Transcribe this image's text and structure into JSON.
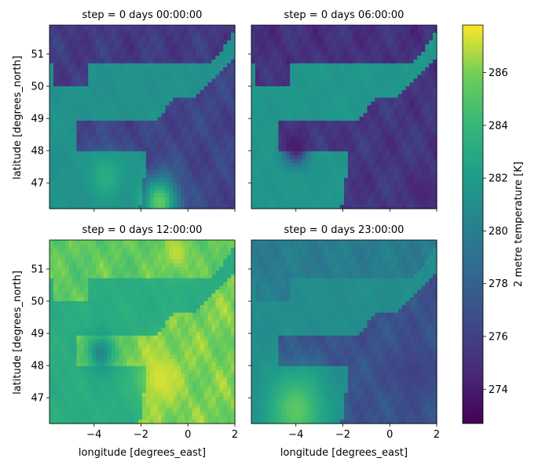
{
  "chart_data": {
    "type": "heatmap",
    "variable_label": "2 metre temperature [K]",
    "colormap": "viridis",
    "colorbar": {
      "range": [
        272.7,
        287.8
      ],
      "ticks": [
        274,
        276,
        278,
        280,
        282,
        284,
        286
      ]
    },
    "xlabel": "longitude [degrees_east]",
    "ylabel": "latitude [degrees_north]",
    "xlim": [
      -5.9,
      2.0
    ],
    "ylim": [
      46.2,
      51.9
    ],
    "xticks": [
      -4,
      -2,
      0,
      2
    ],
    "xtick_labels": [
      "−4",
      "−2",
      "0",
      "2"
    ],
    "yticks": [
      47,
      48,
      49,
      50,
      51
    ],
    "panels": [
      {
        "title": "step = 0 days 00:00:00",
        "sea_temp": 281.3,
        "france_temp": 276.2,
        "britain_temp": 275.6,
        "noise": 1.1,
        "coast_shift": 0.0,
        "hotspots": [
          {
            "lon": -1.2,
            "lat": 46.4,
            "temp": 285.5,
            "radius": 0.8
          },
          {
            "lon": -3.5,
            "lat": 47.2,
            "temp": 283.2,
            "radius": 0.7
          }
        ]
      },
      {
        "title": "step = 0 days 06:00:00",
        "sea_temp": 281.6,
        "france_temp": 275.4,
        "britain_temp": 275.1,
        "noise": 1.1,
        "coast_shift": 0.0,
        "hotspots": [
          {
            "lon": -4.0,
            "lat": 48.1,
            "temp": 274.0,
            "radius": 0.5
          },
          {
            "lon": 1.5,
            "lat": 46.7,
            "temp": 274.5,
            "radius": 0.6
          }
        ]
      },
      {
        "title": "step = 0 days 12:00:00",
        "sea_temp": 283.2,
        "france_temp": 286.0,
        "britain_temp": 285.4,
        "noise": 1.2,
        "coast_shift": 0.0,
        "hotspots": [
          {
            "lon": -1.2,
            "lat": 47.6,
            "temp": 287.3,
            "radius": 0.9
          },
          {
            "lon": -0.5,
            "lat": 51.5,
            "temp": 287.0,
            "radius": 0.6
          },
          {
            "lon": -3.7,
            "lat": 48.4,
            "temp": 280.5,
            "radius": 0.6
          }
        ]
      },
      {
        "title": "step = 0 days 23:00:00",
        "sea_temp": 281.0,
        "france_temp": 277.0,
        "britain_temp": 279.8,
        "noise": 1.0,
        "coast_shift": 0.0,
        "hotspots": [
          {
            "lon": -4.0,
            "lat": 46.6,
            "temp": 285.3,
            "radius": 1.2
          },
          {
            "lon": 1.0,
            "lat": 47.8,
            "temp": 276.0,
            "radius": 0.8
          }
        ]
      }
    ]
  }
}
